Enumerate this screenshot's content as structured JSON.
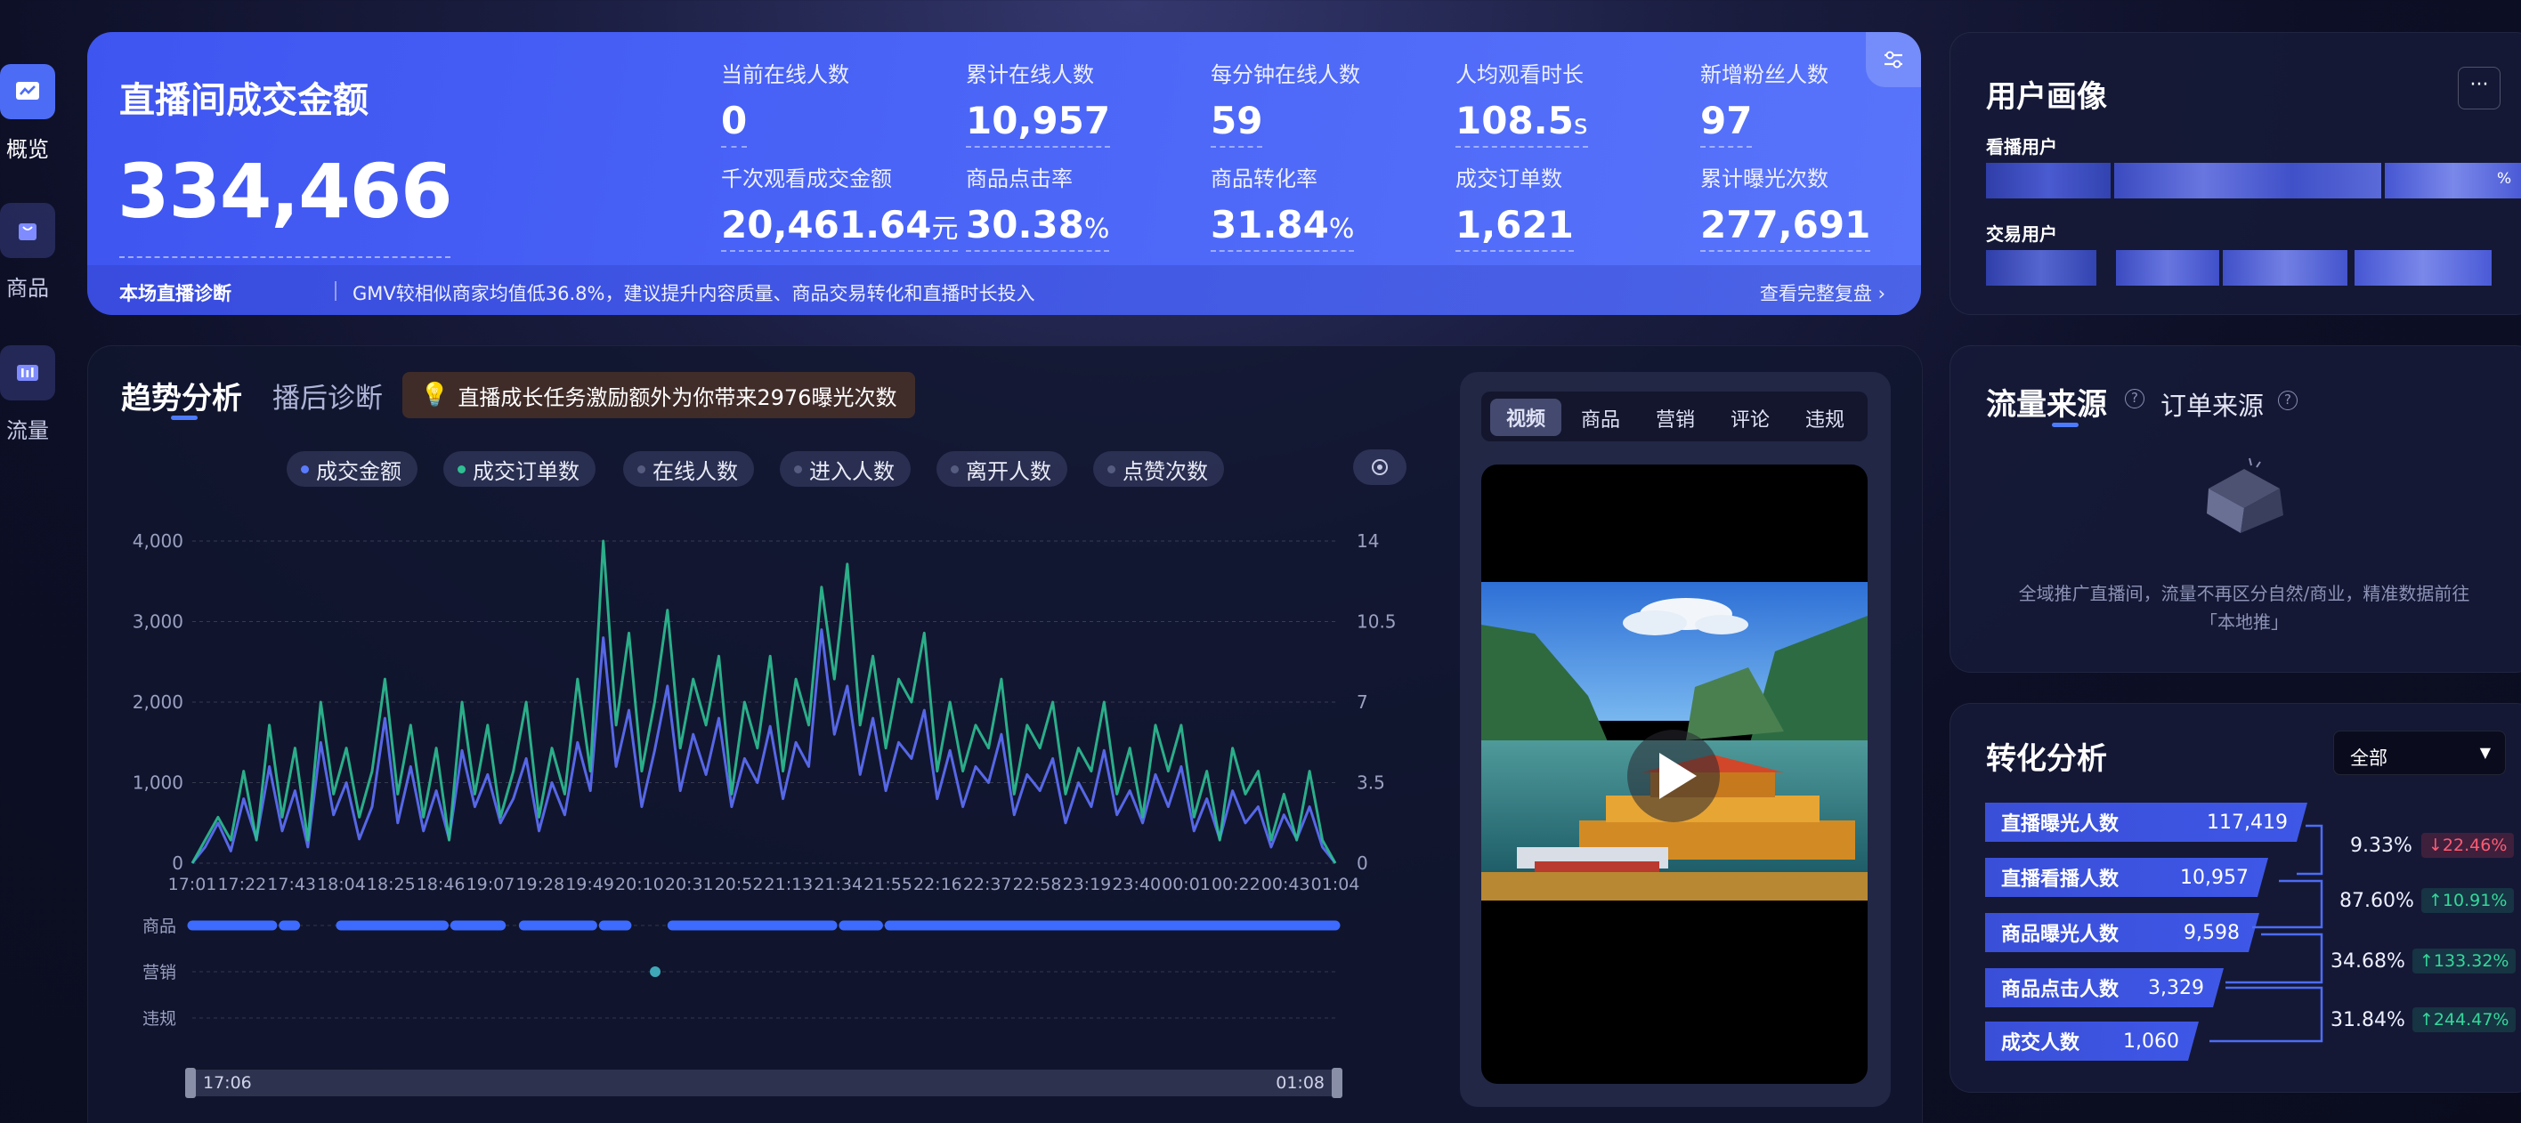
{
  "sidebar": {
    "items": [
      {
        "label": "概览",
        "icon": "overview-chart-icon",
        "active": true
      },
      {
        "label": "商品",
        "icon": "product-bag-icon",
        "active": false
      },
      {
        "label": "流量",
        "icon": "traffic-bars-icon",
        "active": false
      }
    ]
  },
  "gmv_card": {
    "title": "直播间成交金额",
    "value": "334,466",
    "metrics": [
      {
        "label": "当前在线人数",
        "value": "0",
        "unit": ""
      },
      {
        "label": "累计在线人数",
        "value": "10,957",
        "unit": ""
      },
      {
        "label": "每分钟在线人数",
        "value": "59",
        "unit": ""
      },
      {
        "label": "人均观看时长",
        "value": "108.5",
        "unit": "s"
      },
      {
        "label": "新增粉丝人数",
        "value": "97",
        "unit": ""
      },
      {
        "label": "千次观看成交金额",
        "value": "20,461.64",
        "unit": "元"
      },
      {
        "label": "商品点击率",
        "value": "30.38",
        "unit": "%"
      },
      {
        "label": "商品转化率",
        "value": "31.84",
        "unit": "%"
      },
      {
        "label": "成交订单数",
        "value": "1,621",
        "unit": ""
      },
      {
        "label": "累计曝光次数",
        "value": "277,691",
        "unit": ""
      }
    ],
    "diagnosis_label": "本场直播诊断",
    "diagnosis_text": "GMV较相似商家均值低36.8%，建议提升内容质量、商品交易转化和直播时长投入",
    "diagnosis_link": "查看完整复盘 ›"
  },
  "user_profile": {
    "title": "用户画像",
    "more": "···",
    "rows": [
      {
        "label": "看播用户",
        "suffix": "%"
      },
      {
        "label": "交易用户",
        "suffix": ""
      }
    ]
  },
  "traffic_source": {
    "tab_active": "流量来源",
    "tab_other": "订单来源",
    "help": "?",
    "empty_text_line1": "全域推广直播间，流量不再区分自然/商业，精准数据前往",
    "empty_text_line2": "「本地推」"
  },
  "conversion": {
    "title": "转化分析",
    "select_value": "全部",
    "steps": [
      {
        "label": "直播曝光人数",
        "value": "117,419"
      },
      {
        "label": "直播看播人数",
        "value": "10,957"
      },
      {
        "label": "商品曝光人数",
        "value": "9,598"
      },
      {
        "label": "商品点击人数",
        "value": "3,329"
      },
      {
        "label": "成交人数",
        "value": "1,060"
      }
    ],
    "rates": [
      {
        "rate": "9.33%",
        "change": "↓22.46%",
        "dir": "down"
      },
      {
        "rate": "87.60%",
        "change": "↑10.91%",
        "dir": "up"
      },
      {
        "rate": "34.68%",
        "change": "↑133.32%",
        "dir": "up"
      },
      {
        "rate": "31.84%",
        "change": "↑244.47%",
        "dir": "up"
      }
    ]
  },
  "trend": {
    "tab_active": "趋势分析",
    "tab_other": "播后诊断",
    "tip": "直播成长任务激励额外为你带来2976曝光次数",
    "legend": [
      {
        "label": "成交金额",
        "color": "#5b7bff",
        "active": true
      },
      {
        "label": "成交订单数",
        "color": "#2fbf93",
        "active": true
      },
      {
        "label": "在线人数",
        "color": "#555c80",
        "active": false
      },
      {
        "label": "进入人数",
        "color": "#555c80",
        "active": false
      },
      {
        "label": "离开人数",
        "color": "#555c80",
        "active": false
      },
      {
        "label": "点赞次数",
        "color": "#555c80",
        "active": false
      }
    ],
    "event_rows": [
      "商品",
      "营销",
      "违规"
    ],
    "range_start": "17:06",
    "range_end": "01:08"
  },
  "video": {
    "tabs": [
      "视频",
      "商品",
      "营销",
      "评论",
      "违规"
    ],
    "active_tab": "视频"
  },
  "chart_data": {
    "type": "line",
    "x_ticks": [
      "17:01",
      "17:22",
      "17:43",
      "18:04",
      "18:25",
      "18:46",
      "19:07",
      "19:28",
      "19:49",
      "20:10",
      "20:31",
      "20:52",
      "21:13",
      "21:34",
      "21:55",
      "22:16",
      "22:37",
      "22:58",
      "23:19",
      "23:40",
      "00:01",
      "00:22",
      "00:43",
      "01:04"
    ],
    "y_left_ticks": [
      "0",
      "1,000",
      "2,000",
      "3,000",
      "4,000"
    ],
    "y_right_ticks": [
      "0",
      "3.5",
      "7",
      "10.5",
      "14"
    ],
    "ylim_left": [
      0,
      4000
    ],
    "ylim_right": [
      0,
      14
    ],
    "grid": true,
    "series": [
      {
        "name": "成交金额",
        "axis": "left",
        "color": "#5b6cf0",
        "values": [
          0,
          200,
          500,
          150,
          800,
          300,
          1200,
          400,
          900,
          200,
          1500,
          600,
          1000,
          300,
          700,
          1800,
          500,
          1200,
          400,
          900,
          300,
          1400,
          700,
          1100,
          500,
          800,
          1300,
          400,
          1000,
          600,
          1500,
          900,
          2800,
          1200,
          1900,
          700,
          1400,
          2200,
          900,
          1600,
          1100,
          1800,
          700,
          1300,
          1000,
          1700,
          800,
          1500,
          1200,
          2900,
          1600,
          2200,
          1100,
          1800,
          900,
          1500,
          1300,
          1900,
          800,
          1400,
          700,
          1200,
          1000,
          1600,
          600,
          1100,
          900,
          1300,
          500,
          1000,
          700,
          1400,
          600,
          900,
          500,
          1100,
          700,
          1200,
          400,
          800,
          300,
          900,
          500,
          700,
          200,
          600,
          300,
          700,
          200,
          0
        ]
      },
      {
        "name": "成交订单数",
        "axis": "right",
        "color": "#2fbf93",
        "values": [
          0,
          1,
          2,
          1,
          4,
          1,
          6,
          2,
          5,
          1,
          7,
          3,
          5,
          2,
          4,
          8,
          3,
          6,
          2,
          5,
          1,
          7,
          3,
          6,
          2,
          4,
          7,
          2,
          5,
          3,
          8,
          4,
          14,
          6,
          10,
          4,
          7,
          11,
          5,
          8,
          6,
          9,
          3,
          7,
          5,
          9,
          4,
          8,
          6,
          12,
          8,
          13,
          6,
          9,
          5,
          8,
          7,
          10,
          4,
          7,
          4,
          6,
          5,
          8,
          3,
          6,
          5,
          7,
          3,
          5,
          4,
          7,
          3,
          5,
          2,
          6,
          4,
          6,
          2,
          4,
          1,
          5,
          3,
          4,
          1,
          3,
          1,
          4,
          1,
          0
        ]
      }
    ],
    "product_events": "continuous",
    "marketing_events": [
      1
    ]
  }
}
